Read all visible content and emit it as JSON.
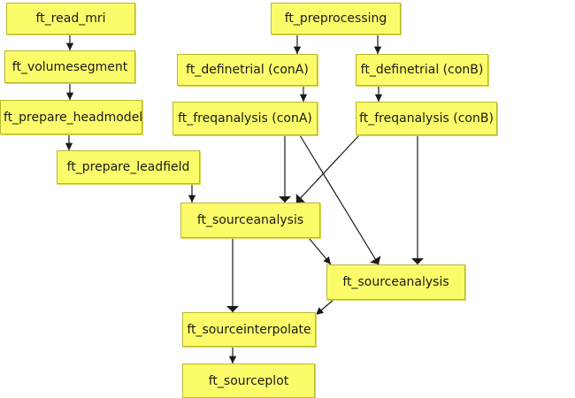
{
  "nodes": {
    "read_mri": "ft_read_mri",
    "preprocessing": "ft_preprocessing",
    "volumesegment": "ft_volumesegment",
    "definetrial_a": "ft_definetrial (conA)",
    "definetrial_b": "ft_definetrial (conB)",
    "prepare_headmodel": "ft_prepare_headmodel",
    "freqanalysis_a": "ft_freqanalysis (conA)",
    "freqanalysis_b": "ft_freqanalysis (conB)",
    "prepare_leadfield": "ft_prepare_leadfield",
    "sourceanalysis_1": "ft_sourceanalysis",
    "sourceanalysis_2": "ft_sourceanalysis",
    "sourceinterpolate": "ft_sourceinterpolate",
    "sourceplot": "ft_sourceplot"
  },
  "colors": {
    "node_fill": "#fcfc6a",
    "node_border": "#b8b830",
    "edge": "#1a1a1a",
    "background": "#ffffff"
  }
}
